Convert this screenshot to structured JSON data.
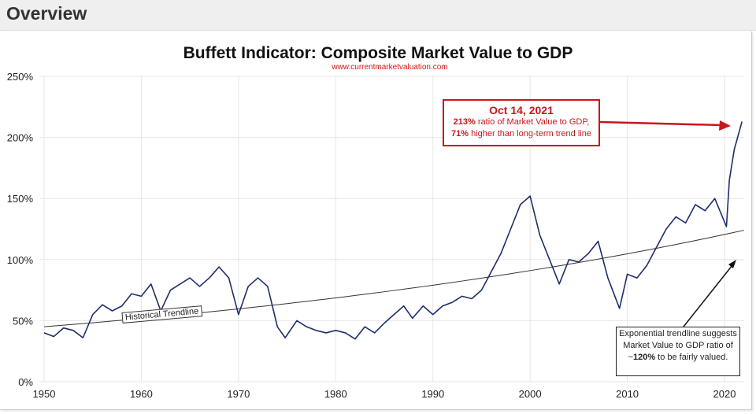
{
  "header": {
    "title": "Overview"
  },
  "chart_data": {
    "type": "line",
    "title": "Buffett Indicator: Composite Market Value to GDP",
    "subtitle": "www.currentmarketvaluation.com",
    "xlim": [
      1950,
      2022
    ],
    "ylim": [
      0,
      250
    ],
    "x_ticks": [
      1950,
      1960,
      1970,
      1980,
      1990,
      2000,
      2010,
      2020
    ],
    "x_tick_labels": [
      "1950",
      "1960",
      "1970",
      "1980",
      "1990",
      "2000",
      "2010",
      "2020"
    ],
    "y_ticks": [
      0,
      50,
      100,
      150,
      200,
      250
    ],
    "y_tick_labels": [
      "0%",
      "50%",
      "100%",
      "150%",
      "200%",
      "250%"
    ],
    "grid": true,
    "colors": {
      "series": "#1f2d6b",
      "trend": "#333333",
      "annotation": "#c8161d"
    },
    "series": [
      {
        "name": "Market Value to GDP",
        "x": [
          1950,
          1951,
          1952,
          1953,
          1954,
          1955,
          1956,
          1957,
          1958,
          1959,
          1960,
          1961,
          1962,
          1963,
          1964,
          1965,
          1966,
          1967,
          1968,
          1969,
          1970,
          1971,
          1972,
          1973,
          1974,
          1974.8,
          1976,
          1977,
          1978,
          1979,
          1980,
          1981,
          1982,
          1983,
          1984,
          1985,
          1986,
          1987,
          1987.9,
          1989,
          1990,
          1991,
          1992,
          1993,
          1994,
          1995,
          1996,
          1997,
          1998,
          1999,
          2000,
          2001,
          2002,
          2003,
          2004,
          2005,
          2006,
          2007,
          2008,
          2009.2,
          2010,
          2011,
          2012,
          2013,
          2014,
          2015,
          2016,
          2017,
          2018,
          2019,
          2020.2,
          2020.5,
          2021,
          2021.8
        ],
        "values": [
          40,
          37,
          44,
          42,
          36,
          55,
          63,
          58,
          62,
          72,
          70,
          80,
          58,
          75,
          80,
          85,
          78,
          85,
          94,
          85,
          55,
          78,
          85,
          78,
          45,
          36,
          50,
          45,
          42,
          40,
          42,
          40,
          35,
          45,
          40,
          48,
          55,
          62,
          52,
          62,
          55,
          62,
          65,
          70,
          68,
          75,
          90,
          105,
          125,
          145,
          152,
          120,
          100,
          80,
          100,
          98,
          105,
          115,
          85,
          60,
          88,
          85,
          95,
          110,
          125,
          135,
          130,
          145,
          140,
          150,
          127,
          165,
          190,
          213
        ]
      },
      {
        "name": "Historical Trendline",
        "type": "exponential",
        "x": [
          1950,
          2022
        ],
        "values": [
          45,
          124
        ]
      }
    ],
    "annotations": {
      "date": "Oct 14, 2021",
      "line1_bold": "213%",
      "line1": " ratio of Market Value to GDP,",
      "line2_bold": "71%",
      "line2": " higher than long-term trend line",
      "trend_label": "Historical Trendline",
      "note_a": "Exponential trendline suggests Market Value to GDP ratio of ~",
      "note_bold": "120%",
      "note_b": " to be fairly valued."
    }
  }
}
